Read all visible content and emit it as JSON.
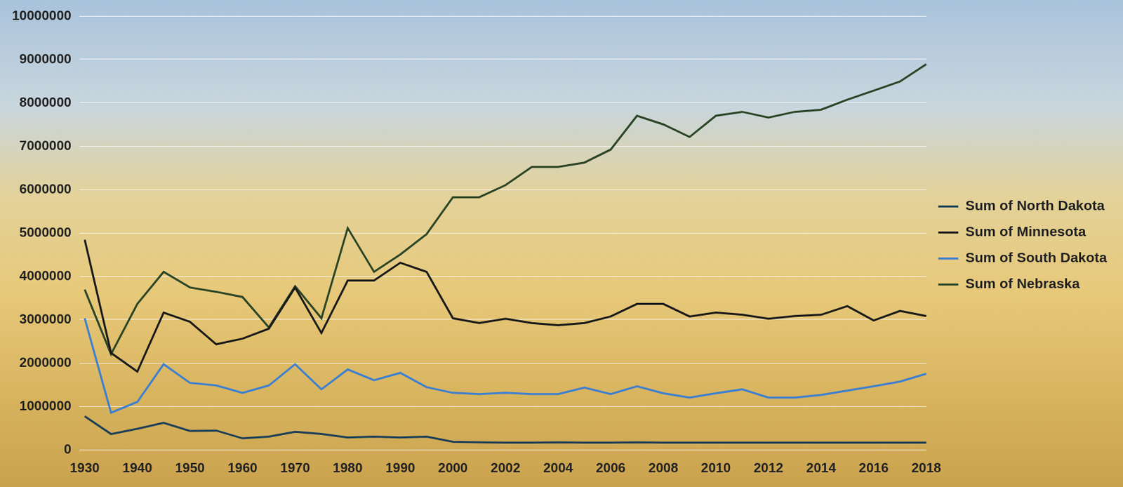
{
  "chart_data": {
    "type": "line",
    "categories": [
      "1930",
      null,
      "1940",
      null,
      "1950",
      null,
      "1960",
      null,
      "1970",
      null,
      "1980",
      null,
      "1990",
      null,
      "2000",
      null,
      "2002",
      null,
      "2004",
      null,
      "2006",
      null,
      "2008",
      null,
      "2010",
      null,
      "2012",
      null,
      "2014",
      null,
      "2016",
      null,
      "2018"
    ],
    "series": [
      {
        "name": "Sum of North Dakota",
        "color": "#1d3f57",
        "values": [
          770000,
          360000,
          480000,
          620000,
          430000,
          440000,
          260000,
          300000,
          410000,
          360000,
          280000,
          300000,
          280000,
          300000,
          180000,
          170000,
          160000,
          160000,
          170000,
          160000,
          160000,
          170000,
          160000,
          160000,
          160000,
          160000,
          160000,
          160000,
          160000,
          160000,
          160000,
          160000,
          160000
        ]
      },
      {
        "name": "Sum of Minnesota",
        "color": "#1a1a1a",
        "values": [
          4840000,
          2230000,
          1800000,
          3160000,
          2950000,
          2430000,
          2560000,
          2790000,
          3740000,
          2690000,
          3900000,
          3900000,
          4310000,
          4100000,
          3030000,
          2920000,
          3020000,
          2920000,
          2870000,
          2920000,
          3070000,
          3360000,
          3360000,
          3070000,
          3160000,
          3110000,
          3020000,
          3080000,
          3110000,
          3310000,
          2980000,
          3200000,
          3080000
        ]
      },
      {
        "name": "Sum of South Dakota",
        "color": "#3d7fd0",
        "values": [
          3030000,
          850000,
          1100000,
          1970000,
          1540000,
          1480000,
          1310000,
          1480000,
          1970000,
          1390000,
          1850000,
          1600000,
          1770000,
          1440000,
          1310000,
          1280000,
          1310000,
          1280000,
          1280000,
          1430000,
          1280000,
          1460000,
          1300000,
          1200000,
          1300000,
          1390000,
          1200000,
          1200000,
          1260000,
          1360000,
          1460000,
          1570000,
          1750000
        ]
      },
      {
        "name": "Sum of Nebraska",
        "color": "#2b4526",
        "values": [
          3690000,
          2200000,
          3360000,
          4100000,
          3740000,
          3640000,
          3520000,
          2820000,
          3770000,
          3030000,
          5110000,
          4100000,
          4500000,
          4970000,
          5820000,
          5820000,
          6100000,
          6520000,
          6520000,
          6620000,
          6920000,
          7700000,
          7500000,
          7210000,
          7700000,
          7790000,
          7660000,
          7790000,
          7840000,
          8070000,
          8280000,
          8490000,
          8890000
        ]
      }
    ],
    "ylim": [
      0,
      10000000
    ],
    "yticks": [
      0,
      1000000,
      2000000,
      3000000,
      4000000,
      5000000,
      6000000,
      7000000,
      8000000,
      9000000,
      10000000
    ],
    "grid": true,
    "legend": "right"
  }
}
